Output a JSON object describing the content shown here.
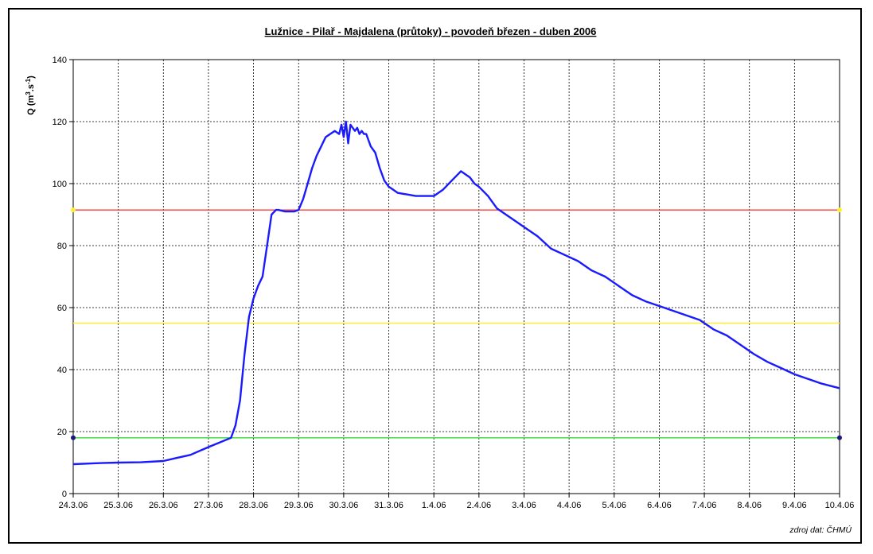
{
  "chart_data": {
    "type": "line",
    "title": "Lužnice - Pilař - Majdalena (průtoky) - povodeň březen - duben 2006",
    "ylabel": "Q (m3.s-1)",
    "ylabel_parts": {
      "base": "Q (m",
      "sup1": "3",
      "mid": ".s",
      "sup2": "-1",
      "end": ")"
    },
    "xlabel": "",
    "source_note": "zdroj dat: ČHMÚ",
    "ylim": [
      0,
      140
    ],
    "yticks": [
      0,
      20,
      40,
      60,
      80,
      100,
      120,
      140
    ],
    "xticks": [
      "24.3.06",
      "25.3.06",
      "26.3.06",
      "27.3.06",
      "28.3.06",
      "29.3.06",
      "30.3.06",
      "31.3.06",
      "1.4.06",
      "2.4.06",
      "3.4.06",
      "4.4.06",
      "5.4.06",
      "6.4.06",
      "7.4.06",
      "8.4.06",
      "9.4.06",
      "10.4.06"
    ],
    "grid": true,
    "thresholds": [
      {
        "value": 91.5,
        "color": "#ff3b30",
        "marker_color": "#ffee33"
      },
      {
        "value": 55,
        "color": "#ffee33"
      },
      {
        "value": 18,
        "color": "#33dd33",
        "marker_color": "#1a1a80"
      }
    ],
    "series": [
      {
        "color": "#1a1aff",
        "x_days": [
          0,
          0.5,
          1,
          1.5,
          2,
          2.3,
          2.6,
          3,
          3.3,
          3.5,
          3.6,
          3.7,
          3.8,
          3.9,
          4.0,
          4.1,
          4.2,
          4.3,
          4.4,
          4.5,
          4.55,
          4.7,
          4.9,
          5.0,
          5.1,
          5.2,
          5.3,
          5.4,
          5.5,
          5.6,
          5.7,
          5.8,
          5.9,
          5.95,
          6.0,
          6.05,
          6.1,
          6.15,
          6.2,
          6.25,
          6.3,
          6.35,
          6.4,
          6.45,
          6.5,
          6.6,
          6.7,
          6.8,
          6.9,
          7.0,
          7.1,
          7.2,
          7.4,
          7.6,
          7.8,
          8.0,
          8.2,
          8.4,
          8.6,
          8.8,
          8.9,
          9.0,
          9.2,
          9.4,
          9.6,
          9.8,
          10.0,
          10.3,
          10.6,
          10.9,
          11.2,
          11.5,
          11.8,
          12.1,
          12.4,
          12.7,
          13.0,
          13.3,
          13.6,
          13.9,
          14.2,
          14.5,
          14.8,
          15.1,
          15.4,
          15.7,
          16.0,
          16.3,
          16.6,
          17.0
        ],
        "values": [
          9.5,
          9.8,
          10,
          10.1,
          10.5,
          11.5,
          12.5,
          15,
          16.8,
          18,
          22,
          30,
          45,
          57,
          63,
          67,
          70,
          80,
          90,
          91.5,
          91.5,
          91,
          91,
          91.5,
          95,
          100,
          105,
          109,
          112,
          115,
          116,
          117,
          116,
          119,
          115,
          120,
          113,
          119,
          118,
          117,
          118,
          116,
          117,
          116,
          116,
          112,
          110,
          105,
          101,
          99,
          98,
          97,
          96.5,
          96,
          96,
          96,
          98,
          101,
          104,
          102,
          100,
          99,
          96,
          92,
          90,
          88,
          86,
          83,
          79,
          77,
          75,
          72,
          70,
          67,
          64,
          62,
          60.5,
          59,
          57.5,
          56,
          53,
          51,
          48,
          45,
          42.5,
          40.5,
          38.5,
          37,
          35.5,
          34
        ]
      }
    ]
  }
}
